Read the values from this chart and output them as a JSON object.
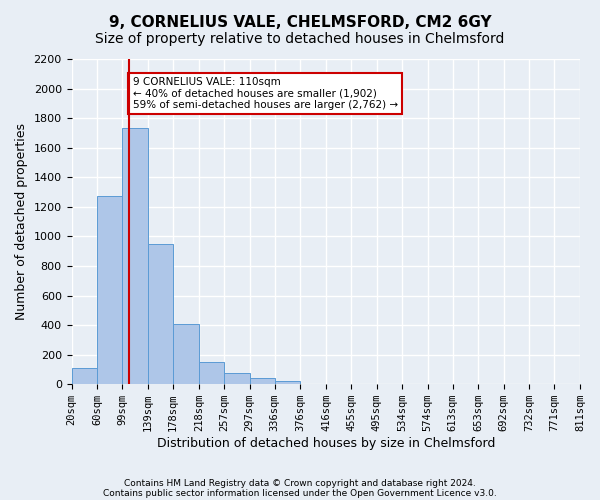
{
  "title1": "9, CORNELIUS VALE, CHELMSFORD, CM2 6GY",
  "title2": "Size of property relative to detached houses in Chelmsford",
  "xlabel": "Distribution of detached houses by size in Chelmsford",
  "ylabel": "Number of detached properties",
  "footnote1": "Contains HM Land Registry data © Crown copyright and database right 2024.",
  "footnote2": "Contains public sector information licensed under the Open Government Licence v3.0.",
  "bar_edges": [
    20,
    60,
    99,
    139,
    178,
    218,
    257,
    297,
    336,
    376,
    416,
    455,
    495,
    534,
    574,
    613,
    653,
    692,
    732,
    771,
    811
  ],
  "bar_labels": [
    "20sqm",
    "60sqm",
    "99sqm",
    "139sqm",
    "178sqm",
    "218sqm",
    "257sqm",
    "297sqm",
    "336sqm",
    "376sqm",
    "416sqm",
    "455sqm",
    "495sqm",
    "534sqm",
    "574sqm",
    "613sqm",
    "653sqm",
    "692sqm",
    "732sqm",
    "771sqm",
    "811sqm"
  ],
  "bar_values": [
    110,
    1270,
    1730,
    950,
    410,
    150,
    75,
    45,
    25,
    0,
    0,
    0,
    0,
    0,
    0,
    0,
    0,
    0,
    0,
    0
  ],
  "bar_color": "#aec6e8",
  "bar_edge_color": "#5b9bd5",
  "vline_x": 110,
  "vline_color": "#cc0000",
  "vline_bin_index": 2,
  "annotation_text": "9 CORNELIUS VALE: 110sqm\n← 40% of detached houses are smaller (1,902)\n59% of semi-detached houses are larger (2,762) →",
  "annotation_box_color": "#ffffff",
  "annotation_border_color": "#cc0000",
  "ylim": [
    0,
    2200
  ],
  "yticks": [
    0,
    200,
    400,
    600,
    800,
    1000,
    1200,
    1400,
    1600,
    1800,
    2000,
    2200
  ],
  "background_color": "#e8eef5",
  "plot_bg_color": "#e8eef5",
  "grid_color": "#ffffff",
  "title1_fontsize": 11,
  "title2_fontsize": 10,
  "ylabel_fontsize": 9,
  "xlabel_fontsize": 9,
  "tick_fontsize": 7.5
}
